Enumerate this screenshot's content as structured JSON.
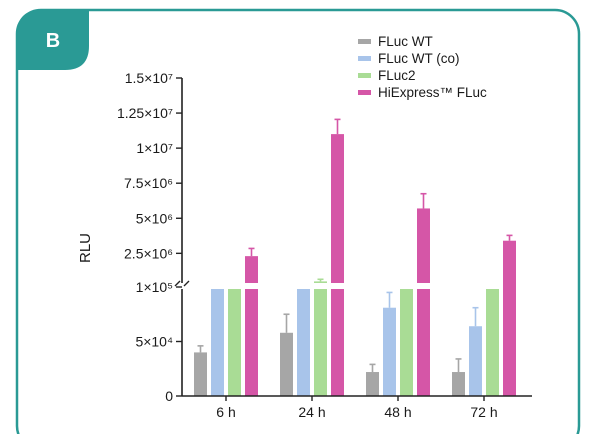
{
  "panel_label": "B",
  "colors": {
    "frame": "#2a9a95",
    "badge": "#2a9a95",
    "axis": "#222222",
    "break_gap": "#ffffff"
  },
  "chart_data": {
    "type": "bar",
    "title": "",
    "xlabel": "",
    "ylabel": "RLU",
    "y_axis_break": {
      "lower_segment": [
        0,
        100000
      ],
      "upper_segment": [
        100000,
        15000000
      ]
    },
    "y_ticks": [
      {
        "value": 0,
        "label": "0"
      },
      {
        "value": 50000,
        "label": "5×10⁴"
      },
      {
        "value": 100000,
        "label": "1×10⁵"
      },
      {
        "value": 2500000,
        "label": "2.5×10⁶"
      },
      {
        "value": 5000000,
        "label": "5×10⁶"
      },
      {
        "value": 7500000,
        "label": "7.5×10⁶"
      },
      {
        "value": 10000000,
        "label": "1×10⁷"
      },
      {
        "value": 12500000,
        "label": "1.25×10⁷"
      },
      {
        "value": 15000000,
        "label": "1.5×10⁷"
      }
    ],
    "categories": [
      "6 h",
      "24 h",
      "48 h",
      "72 h"
    ],
    "legend_position": "top-right",
    "grid": false,
    "series": [
      {
        "name": "FLuc WT",
        "color": "#a6a6a6",
        "values": [
          40000,
          58000,
          22000,
          22000
        ],
        "errors": [
          6000,
          17000,
          7000,
          12000
        ]
      },
      {
        "name": "FLuc WT (co)",
        "color": "#a8c4ea",
        "values": [
          100000,
          100000,
          81000,
          64000
        ],
        "errors": [
          0,
          0,
          14000,
          17000
        ]
      },
      {
        "name": "FLuc2",
        "color": "#a9dc95",
        "values": [
          150000,
          500000,
          150000,
          100000
        ],
        "errors": [
          80000,
          150000,
          90000,
          40000
        ]
      },
      {
        "name": "HiExpress™ FLuc",
        "color": "#d556a7",
        "values": [
          2300000,
          11000000,
          5700000,
          3400000
        ],
        "errors": [
          550000,
          1050000,
          1050000,
          380000
        ]
      }
    ]
  }
}
